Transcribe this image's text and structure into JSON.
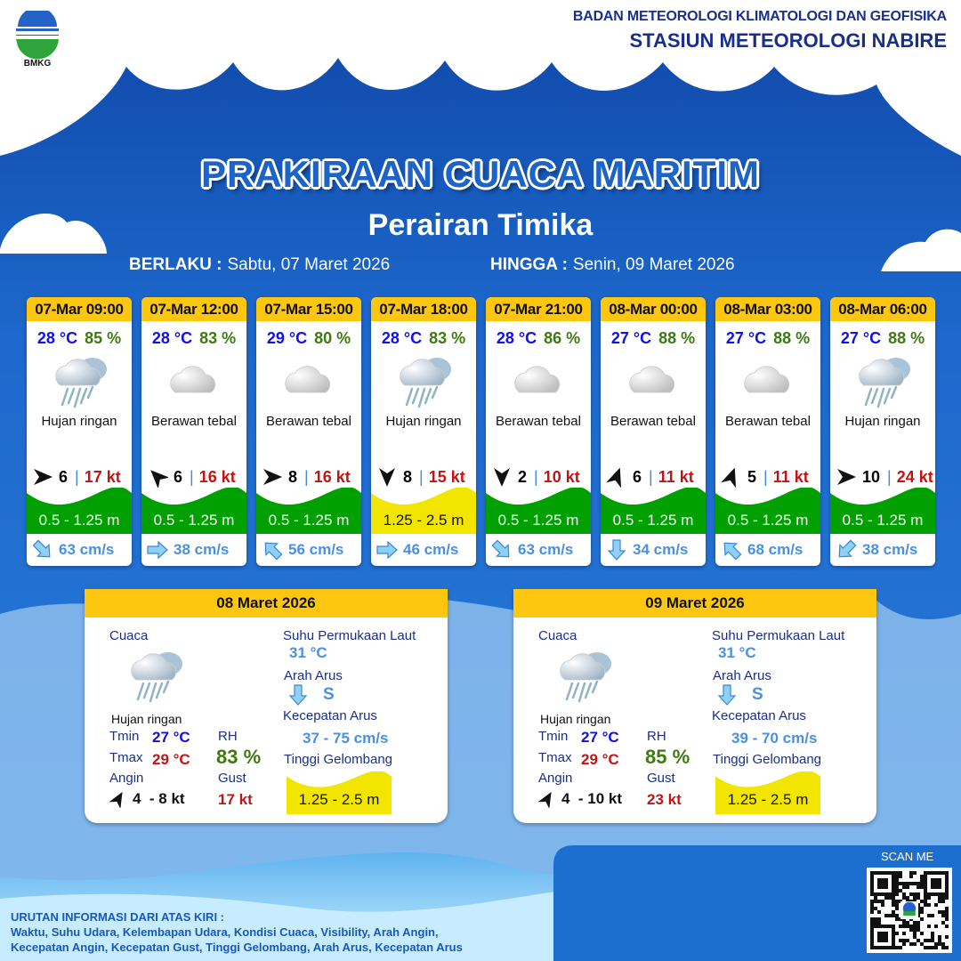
{
  "header": {
    "org": "BADAN METEOROLOGI KLIMATOLOGI DAN GEOFISIKA",
    "station": "STASIUN METEOROLOGI NABIRE",
    "logo_text": "BMKG"
  },
  "title": "PRAKIRAAN CUACA MARITIM",
  "subtitle": "Perairan Timika",
  "validity": {
    "from_label": "BERLAKU :",
    "from": "Sabtu, 07 Maret 2026",
    "to_label": "HINGGA :",
    "to": "Senin, 09 Maret 2026"
  },
  "colors": {
    "accent": "#fcc70e",
    "background": "#1c64c8",
    "wave_low": "#00a000",
    "wave_mid": "#f2e600",
    "temp": "#1010ee",
    "rh": "#3d7a12",
    "gust": "#c01515",
    "current": "#4a90e2"
  },
  "forecasts": [
    {
      "time": "07-Mar 09:00",
      "temp": "28 °C",
      "rh": "85 %",
      "weather": "Hujan ringan",
      "icon": "rain-cloud-icon",
      "wind_dir_deg": 90,
      "wind": "6",
      "gust": "17 kt",
      "wave": "0.5 - 1.25 m",
      "wave_level": "low",
      "current_dir_deg": 135,
      "current": "63 cm/s"
    },
    {
      "time": "07-Mar 12:00",
      "temp": "28 °C",
      "rh": "83 %",
      "weather": "Berawan tebal",
      "icon": "cloud-icon",
      "wind_dir_deg": 315,
      "wind": "6",
      "gust": "16 kt",
      "wave": "0.5 - 1.25 m",
      "wave_level": "low",
      "current_dir_deg": 90,
      "current": "38 cm/s"
    },
    {
      "time": "07-Mar 15:00",
      "temp": "29 °C",
      "rh": "80 %",
      "weather": "Berawan tebal",
      "icon": "cloud-icon",
      "wind_dir_deg": 90,
      "wind": "8",
      "gust": "16 kt",
      "wave": "0.5 - 1.25 m",
      "wave_level": "low",
      "current_dir_deg": 315,
      "current": "56 cm/s"
    },
    {
      "time": "07-Mar 18:00",
      "temp": "28 °C",
      "rh": "83 %",
      "weather": "Hujan ringan",
      "icon": "rain-cloud-icon",
      "wind_dir_deg": 180,
      "wind": "8",
      "gust": "15 kt",
      "wave": "1.25 - 2.5 m",
      "wave_level": "mid",
      "current_dir_deg": 90,
      "current": "46 cm/s"
    },
    {
      "time": "07-Mar 21:00",
      "temp": "28 °C",
      "rh": "86 %",
      "weather": "Berawan tebal",
      "icon": "cloud-icon",
      "wind_dir_deg": 180,
      "wind": "2",
      "gust": "10 kt",
      "wave": "0.5 - 1.25 m",
      "wave_level": "low",
      "current_dir_deg": 135,
      "current": "63 cm/s"
    },
    {
      "time": "08-Mar 00:00",
      "temp": "27 °C",
      "rh": "88 %",
      "weather": "Berawan tebal",
      "icon": "cloud-icon",
      "wind_dir_deg": 20,
      "wind": "6",
      "gust": "11 kt",
      "wave": "0.5 - 1.25 m",
      "wave_level": "low",
      "current_dir_deg": 180,
      "current": "34 cm/s"
    },
    {
      "time": "08-Mar 03:00",
      "temp": "27 °C",
      "rh": "88 %",
      "weather": "Berawan tebal",
      "icon": "cloud-icon",
      "wind_dir_deg": 20,
      "wind": "5",
      "gust": "11 kt",
      "wave": "0.5 - 1.25 m",
      "wave_level": "low",
      "current_dir_deg": 315,
      "current": "68 cm/s"
    },
    {
      "time": "08-Mar 06:00",
      "temp": "27 °C",
      "rh": "88 %",
      "weather": "Hujan ringan",
      "icon": "rain-cloud-icon",
      "wind_dir_deg": 90,
      "wind": "10",
      "gust": "24 kt",
      "wave": "0.5 - 1.25 m",
      "wave_level": "low",
      "current_dir_deg": 225,
      "current": "38 cm/s"
    }
  ],
  "labels": {
    "cuaca": "Cuaca",
    "sst": "Suhu Permukaan Laut",
    "arah_arus": "Arah Arus",
    "kec_arus": "Kecepatan Arus",
    "gelombang": "Tinggi Gelombang",
    "tmin": "Tmin",
    "tmax": "Tmax",
    "rh": "RH",
    "angin": "Angin",
    "gust": "Gust"
  },
  "daily": [
    {
      "date": "08 Maret 2026",
      "weather": "Hujan ringan",
      "tmin": "27 °C",
      "tmax": "29 °C",
      "rh": "83 %",
      "wind": "4  - 8 kt",
      "wind_dir_deg": 30,
      "gust": "17 kt",
      "sst": "31 °C",
      "current_dir": "S",
      "current_dir_deg": 180,
      "current_speed": "37 - 75 cm/s",
      "wave": "1.25 - 2.5 m",
      "wave_level": "mid"
    },
    {
      "date": "09 Maret 2026",
      "weather": "Hujan ringan",
      "tmin": "27 °C",
      "tmax": "29 °C",
      "rh": "85 %",
      "wind": "4  - 10 kt",
      "wind_dir_deg": 30,
      "gust": "23 kt",
      "sst": "31 °C",
      "current_dir": "S",
      "current_dir_deg": 180,
      "current_speed": "39 - 70 cm/s",
      "wave": "1.25 - 2.5 m",
      "wave_level": "mid"
    }
  ],
  "footer": {
    "heading": "URUTAN INFORMASI DARI ATAS KIRI :",
    "line1": "Waktu, Suhu Udara, Kelembapan Udara, Kondisi Cuaca, Visibility, Arah Angin,",
    "line2": "Kecepatan Angin, Kecepatan Gust, Tinggi Gelombang, Arah Arus, Kecepatan Arus",
    "scan": "SCAN ME"
  }
}
